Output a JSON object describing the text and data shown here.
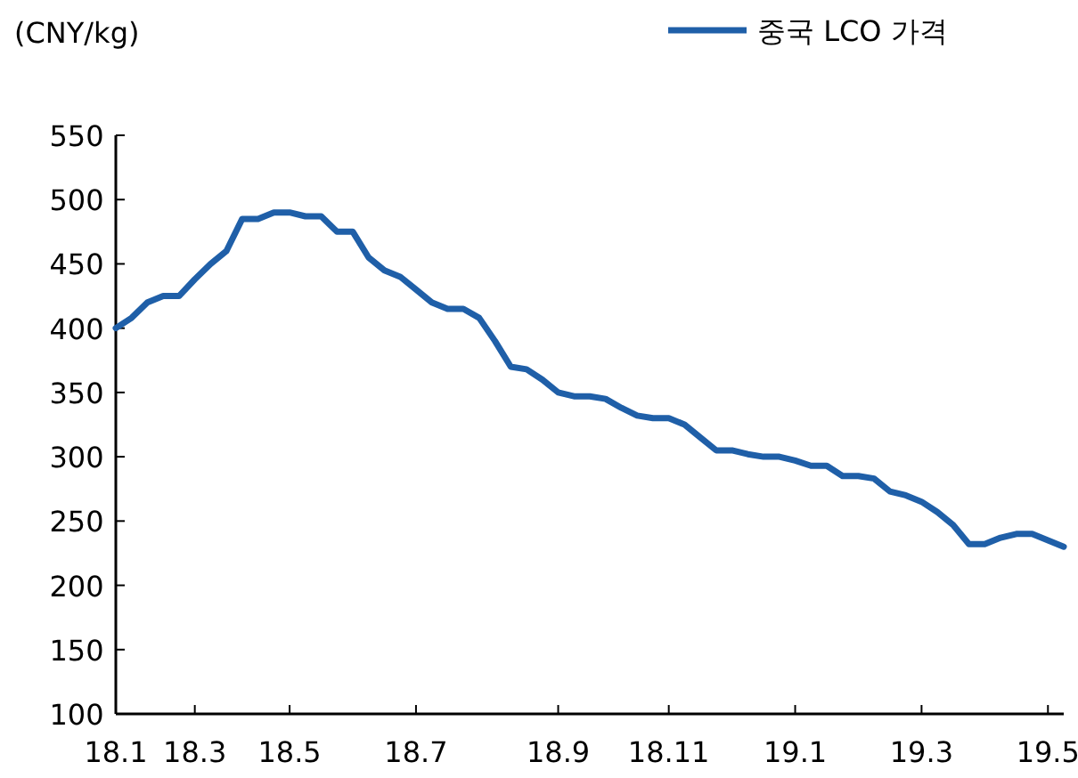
{
  "chart_data": {
    "type": "line",
    "ylabel": "(CNY/kg)",
    "legend": "top right",
    "grid": false,
    "marker": "none",
    "line_style": "solid",
    "categories": [
      "18.1",
      null,
      null,
      null,
      null,
      "18.3",
      null,
      null,
      null,
      null,
      null,
      "18.5",
      null,
      null,
      null,
      null,
      null,
      null,
      null,
      "18.7",
      null,
      null,
      null,
      null,
      null,
      null,
      null,
      null,
      "18.9",
      null,
      null,
      null,
      null,
      null,
      null,
      "18.11",
      null,
      null,
      null,
      null,
      null,
      null,
      null,
      "19.1",
      null,
      null,
      null,
      null,
      null,
      null,
      null,
      "19.3",
      null,
      null,
      null,
      null,
      null,
      null,
      null,
      "19.5",
      null
    ],
    "ylim": [
      100,
      550
    ],
    "yticks": [
      100,
      150,
      200,
      250,
      300,
      350,
      400,
      450,
      500,
      550
    ],
    "series": [
      {
        "name": "중국 LCO 가격",
        "color": "#1f5fa8",
        "values": [
          400,
          408,
          420,
          425,
          425,
          438,
          450,
          460,
          485,
          485,
          490,
          490,
          487,
          487,
          475,
          475,
          455,
          445,
          440,
          430,
          420,
          415,
          415,
          408,
          390,
          370,
          368,
          360,
          350,
          347,
          347,
          345,
          338,
          332,
          330,
          330,
          325,
          315,
          305,
          305,
          302,
          300,
          300,
          297,
          293,
          293,
          285,
          285,
          283,
          273,
          270,
          265,
          257,
          247,
          232,
          232,
          237,
          240,
          240,
          235,
          230
        ]
      }
    ]
  }
}
